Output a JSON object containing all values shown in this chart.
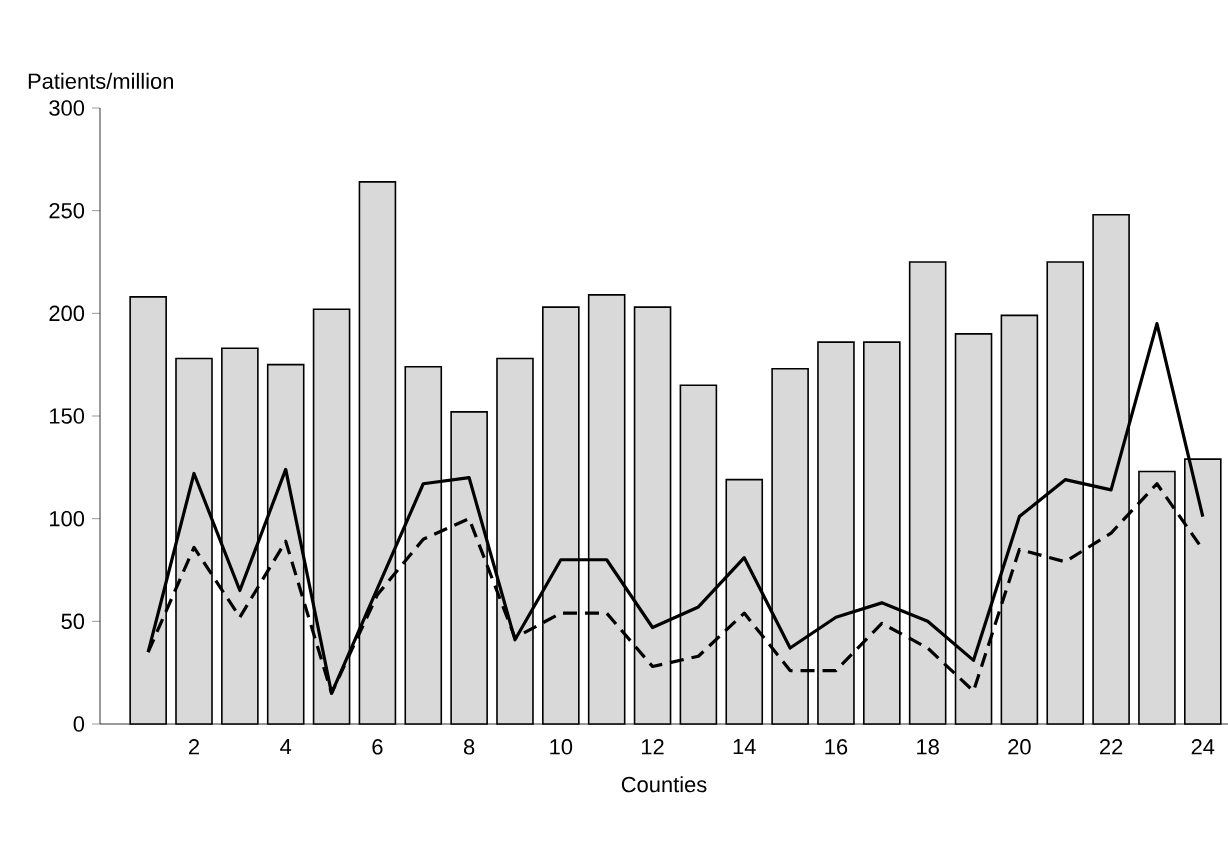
{
  "chart_data": {
    "type": "bar",
    "ylabel": "Patients/million",
    "xlabel": "Counties",
    "categories": [
      null,
      "2",
      null,
      "4",
      null,
      "6",
      null,
      "8",
      null,
      "10",
      null,
      "12",
      null,
      "14",
      null,
      "16",
      null,
      "18",
      null,
      "20",
      null,
      "22",
      null,
      "24"
    ],
    "ylim": [
      0,
      300
    ],
    "yticks": [
      0,
      50,
      100,
      150,
      200,
      250,
      300
    ],
    "grid": false,
    "series": [
      {
        "color": "#d9d9d9",
        "values": [
          208,
          178,
          183,
          175,
          202,
          264,
          174,
          152,
          178,
          203,
          209,
          203,
          165,
          119,
          173,
          186,
          186,
          225,
          190,
          199,
          225,
          248,
          123,
          129
        ]
      },
      {
        "type": "line",
        "color": "#000000",
        "line_style": "solid",
        "values": [
          35,
          122,
          65,
          124,
          15,
          66,
          117,
          120,
          41,
          80,
          80,
          47,
          57,
          81,
          37,
          52,
          59,
          50,
          31,
          101,
          119,
          114,
          195,
          101
        ]
      },
      {
        "type": "line",
        "color": "#000000",
        "line_style": "dashed",
        "values": [
          35,
          86,
          52,
          89,
          15,
          63,
          90,
          100,
          42,
          54,
          54,
          28,
          33,
          54,
          26,
          26,
          49,
          37,
          16,
          85,
          79,
          93,
          117,
          85
        ]
      }
    ]
  }
}
